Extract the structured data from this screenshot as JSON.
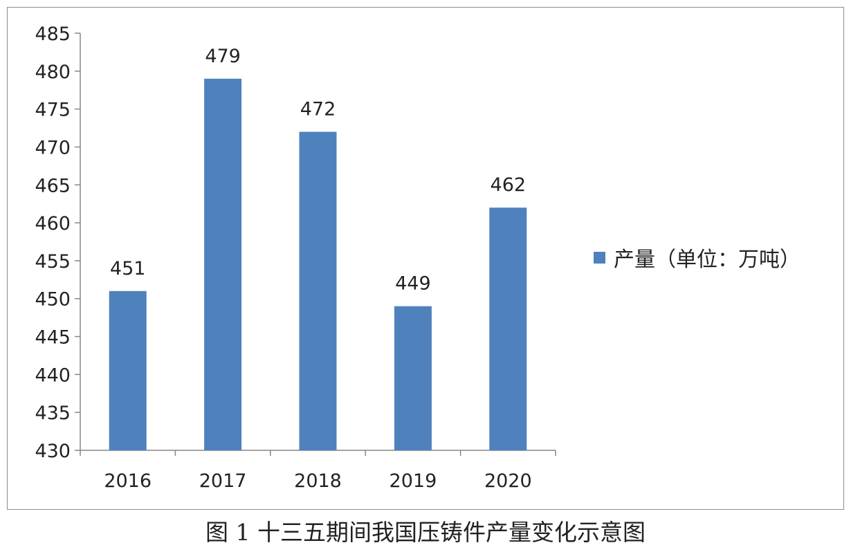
{
  "chart_data": {
    "type": "bar",
    "categories": [
      "2016",
      "2017",
      "2018",
      "2019",
      "2020"
    ],
    "series": [
      {
        "name": "产量（单位：万吨）",
        "values": [
          451,
          479,
          472,
          449,
          462
        ],
        "color": "#4f81bd"
      }
    ],
    "data_labels": [
      "451",
      "479",
      "472",
      "449",
      "462"
    ],
    "ylim": [
      430,
      485
    ],
    "y_ticks": [
      "430",
      "435",
      "440",
      "445",
      "450",
      "455",
      "460",
      "465",
      "470",
      "475",
      "480",
      "485"
    ],
    "legend_placement": "right",
    "grid": false,
    "title": "",
    "xlabel": "",
    "ylabel": ""
  },
  "legend": {
    "label": "产量（单位：万吨）"
  },
  "caption": "图 1  十三五期间我国压铸件产量变化示意图"
}
